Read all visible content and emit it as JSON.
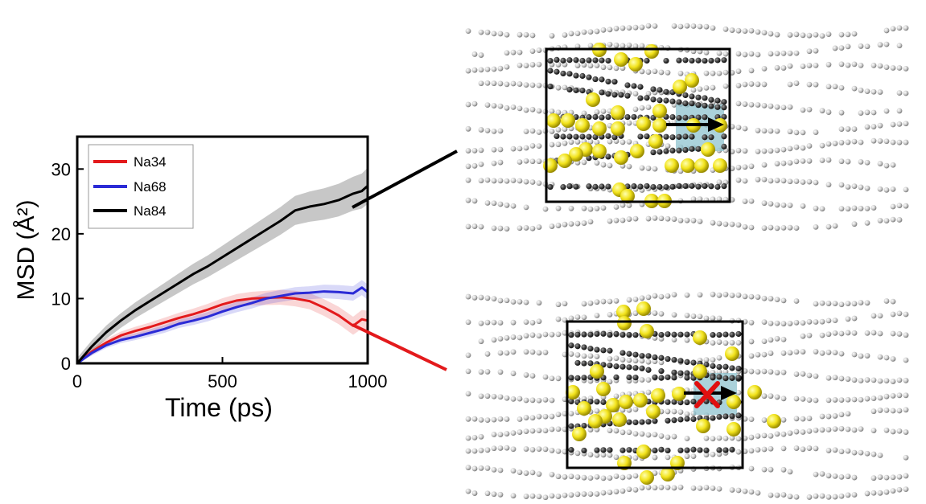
{
  "chart_data": {
    "type": "line",
    "xlabel": "Time (ps)",
    "ylabel": "MSD (Å²)",
    "xlim": [
      0,
      1000
    ],
    "ylim": [
      0,
      35
    ],
    "xticks": [
      0,
      500,
      1000
    ],
    "yticks": [
      0,
      10,
      20,
      30
    ],
    "legend_position": "top-left",
    "series": [
      {
        "name": "Na34",
        "color": "#e31a1c",
        "x": [
          0,
          50,
          100,
          150,
          200,
          250,
          300,
          350,
          400,
          450,
          500,
          550,
          600,
          650,
          700,
          750,
          800,
          850,
          900,
          950,
          980,
          1000
        ],
        "y": [
          0,
          1.8,
          3.2,
          4.3,
          5.0,
          5.6,
          6.3,
          7.0,
          7.6,
          8.3,
          9.1,
          9.7,
          10.0,
          10.1,
          10.2,
          10.0,
          9.6,
          8.6,
          7.4,
          5.8,
          6.8,
          6.6
        ],
        "band": 1.5
      },
      {
        "name": "Na68",
        "color": "#2b2bd6",
        "x": [
          0,
          50,
          100,
          150,
          200,
          250,
          300,
          350,
          400,
          450,
          500,
          550,
          600,
          650,
          700,
          750,
          800,
          850,
          900,
          950,
          980,
          1000
        ],
        "y": [
          0,
          1.6,
          2.8,
          3.6,
          4.1,
          4.7,
          5.3,
          6.1,
          6.6,
          7.2,
          8.0,
          8.7,
          9.3,
          10.0,
          10.4,
          10.8,
          10.9,
          11.1,
          11.0,
          10.8,
          11.7,
          11.0
        ],
        "band": 1.2
      },
      {
        "name": "Na84",
        "color": "#000000",
        "x": [
          0,
          50,
          100,
          150,
          200,
          250,
          300,
          350,
          400,
          450,
          500,
          550,
          600,
          650,
          700,
          750,
          800,
          850,
          900,
          950,
          980,
          1000
        ],
        "y": [
          0,
          2.6,
          4.8,
          6.6,
          8.2,
          9.6,
          11.0,
          12.4,
          13.8,
          15.0,
          16.4,
          17.8,
          19.2,
          20.6,
          22.0,
          23.6,
          24.2,
          24.6,
          25.2,
          26.2,
          26.6,
          27.4
        ],
        "band": 2.8
      }
    ]
  },
  "colors": {
    "atom_yellow": "#f2e31c",
    "atom_gray": "#bdbdbd",
    "chain_dark": "#3a3a3a",
    "channel": "#8fc3cf",
    "blocked_x": "#e01010",
    "connector_black": "#000000",
    "connector_red": "#e31a1c"
  }
}
